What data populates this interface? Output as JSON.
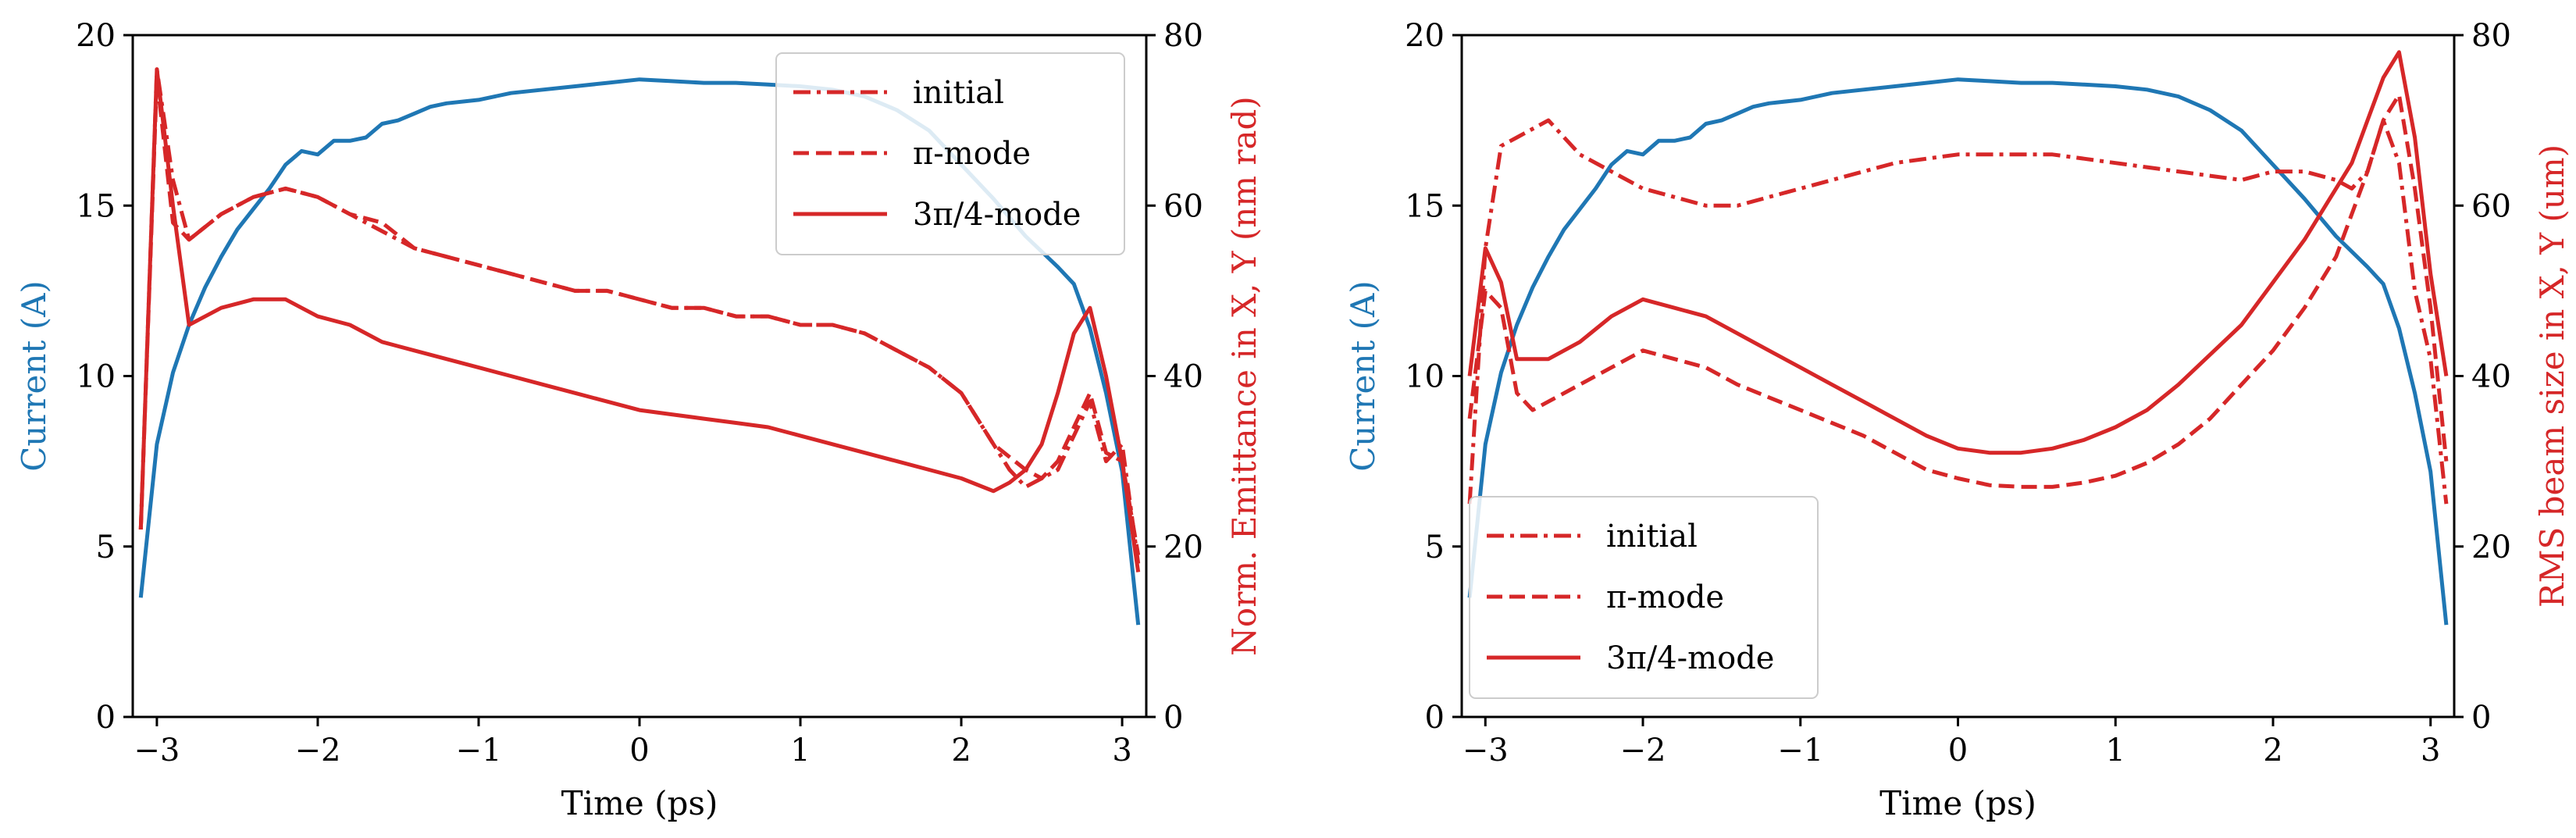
{
  "colors": {
    "current": "#1f77b4",
    "emittance": "#d62728"
  },
  "chart_data": [
    {
      "type": "line",
      "xlabel": "Time (ps)",
      "ylabel_left": "Current (A)",
      "ylabel_right": "Norm. Emittance in X, Y (nm rad)",
      "xlim": [
        -3.15,
        3.15
      ],
      "ylim_left": [
        0,
        20
      ],
      "ylim_right": [
        0,
        80
      ],
      "xticks": [
        -3,
        -2,
        -1,
        0,
        1,
        2,
        3
      ],
      "xtick_labels": [
        "−3",
        "−2",
        "−1",
        "0",
        "1",
        "2",
        "3"
      ],
      "yticks_left": [
        0,
        5,
        10,
        15,
        20
      ],
      "yticks_right": [
        0,
        20,
        40,
        60,
        80
      ],
      "legend_position": "top-right",
      "current": {
        "x": [
          -3.1,
          -3.0,
          -2.9,
          -2.8,
          -2.7,
          -2.6,
          -2.5,
          -2.4,
          -2.3,
          -2.2,
          -2.1,
          -2.0,
          -1.9,
          -1.8,
          -1.7,
          -1.6,
          -1.5,
          -1.4,
          -1.3,
          -1.2,
          -1.0,
          -0.8,
          -0.6,
          -0.4,
          -0.2,
          0.0,
          0.2,
          0.4,
          0.6,
          0.8,
          1.0,
          1.2,
          1.4,
          1.6,
          1.8,
          2.0,
          2.2,
          2.4,
          2.6,
          2.7,
          2.8,
          2.9,
          3.0,
          3.1
        ],
        "y": [
          3.5,
          8.0,
          10.1,
          11.5,
          12.6,
          13.5,
          14.3,
          14.9,
          15.5,
          16.2,
          16.6,
          16.5,
          16.9,
          16.9,
          17.0,
          17.4,
          17.5,
          17.7,
          17.9,
          18.0,
          18.1,
          18.3,
          18.4,
          18.5,
          18.6,
          18.7,
          18.65,
          18.6,
          18.6,
          18.55,
          18.5,
          18.4,
          18.2,
          17.8,
          17.2,
          16.2,
          15.2,
          14.1,
          13.2,
          12.7,
          11.4,
          9.5,
          7.2,
          2.7
        ]
      },
      "series": [
        {
          "name": "initial",
          "style": "dashdot",
          "x": [
            -3.1,
            -3.0,
            -2.9,
            -2.8,
            -2.6,
            -2.4,
            -2.2,
            -2.0,
            -1.8,
            -1.6,
            -1.4,
            -1.2,
            -1.0,
            -0.8,
            -0.6,
            -0.4,
            -0.2,
            0.0,
            0.2,
            0.4,
            0.6,
            0.8,
            1.0,
            1.2,
            1.4,
            1.6,
            1.8,
            2.0,
            2.1,
            2.2,
            2.3,
            2.4,
            2.5,
            2.6,
            2.7,
            2.8,
            2.9,
            3.0,
            3.1
          ],
          "y": [
            22,
            76,
            63,
            56,
            59,
            61,
            62,
            61,
            59,
            57,
            55,
            54,
            53,
            52,
            51,
            50,
            50,
            49,
            48,
            48,
            47,
            47,
            46,
            46,
            45,
            43,
            41,
            38,
            35,
            32,
            29,
            27,
            28,
            29,
            33,
            37,
            30,
            32,
            18
          ]
        },
        {
          "name": "π-mode",
          "style": "dashed",
          "x": [
            -3.1,
            -3.0,
            -2.9,
            -2.8,
            -2.6,
            -2.4,
            -2.2,
            -2.0,
            -1.8,
            -1.6,
            -1.4,
            -1.2,
            -1.0,
            -0.8,
            -0.6,
            -0.4,
            -0.2,
            0.0,
            0.2,
            0.4,
            0.6,
            0.8,
            1.0,
            1.2,
            1.4,
            1.6,
            1.8,
            2.0,
            2.2,
            2.4,
            2.5,
            2.6,
            2.7,
            2.8,
            2.9,
            3.0,
            3.1
          ],
          "y": [
            22,
            75,
            58,
            56,
            59,
            61,
            62,
            61,
            59,
            58,
            55,
            54,
            53,
            52,
            51,
            50,
            50,
            49,
            48,
            48,
            47,
            47,
            46,
            46,
            45,
            43,
            41,
            38,
            32,
            29,
            28,
            30,
            34,
            38,
            31,
            30,
            19
          ]
        },
        {
          "name": "3π/4-mode",
          "style": "solid",
          "x": [
            -3.1,
            -3.0,
            -2.9,
            -2.8,
            -2.6,
            -2.4,
            -2.2,
            -2.0,
            -1.8,
            -1.6,
            -1.4,
            -1.2,
            -1.0,
            -0.8,
            -0.6,
            -0.4,
            -0.2,
            0.0,
            0.2,
            0.4,
            0.6,
            0.8,
            1.0,
            1.2,
            1.4,
            1.6,
            1.8,
            2.0,
            2.2,
            2.3,
            2.4,
            2.5,
            2.6,
            2.7,
            2.8,
            2.9,
            3.0,
            3.1
          ],
          "y": [
            22,
            76,
            60,
            46,
            48,
            49,
            49,
            47,
            46,
            44,
            43,
            42,
            41,
            40,
            39,
            38,
            37,
            36,
            35.5,
            35,
            34.5,
            34,
            33,
            32,
            31,
            30,
            29,
            28,
            26.5,
            27.5,
            29,
            32,
            38,
            45,
            48,
            40,
            30,
            17
          ]
        }
      ]
    },
    {
      "type": "line",
      "xlabel": "Time (ps)",
      "ylabel_left": "Current (A)",
      "ylabel_right": "RMS beam size in X, Y (um)",
      "xlim": [
        -3.15,
        3.15
      ],
      "ylim_left": [
        0,
        20
      ],
      "ylim_right": [
        0,
        80
      ],
      "xticks": [
        -3,
        -2,
        -1,
        0,
        1,
        2,
        3
      ],
      "xtick_labels": [
        "−3",
        "−2",
        "−1",
        "0",
        "1",
        "2",
        "3"
      ],
      "yticks_left": [
        0,
        5,
        10,
        15,
        20
      ],
      "yticks_right": [
        0,
        20,
        40,
        60,
        80
      ],
      "legend_position": "bottom-left",
      "current": {
        "x": [
          -3.1,
          -3.0,
          -2.9,
          -2.8,
          -2.7,
          -2.6,
          -2.5,
          -2.4,
          -2.3,
          -2.2,
          -2.1,
          -2.0,
          -1.9,
          -1.8,
          -1.7,
          -1.6,
          -1.5,
          -1.4,
          -1.3,
          -1.2,
          -1.0,
          -0.8,
          -0.6,
          -0.4,
          -0.2,
          0.0,
          0.2,
          0.4,
          0.6,
          0.8,
          1.0,
          1.2,
          1.4,
          1.6,
          1.8,
          2.0,
          2.2,
          2.4,
          2.6,
          2.7,
          2.8,
          2.9,
          3.0,
          3.1
        ],
        "y": [
          3.5,
          8.0,
          10.1,
          11.5,
          12.6,
          13.5,
          14.3,
          14.9,
          15.5,
          16.2,
          16.6,
          16.5,
          16.9,
          16.9,
          17.0,
          17.4,
          17.5,
          17.7,
          17.9,
          18.0,
          18.1,
          18.3,
          18.4,
          18.5,
          18.6,
          18.7,
          18.65,
          18.6,
          18.6,
          18.55,
          18.5,
          18.4,
          18.2,
          17.8,
          17.2,
          16.2,
          15.2,
          14.1,
          13.2,
          12.7,
          11.4,
          9.5,
          7.2,
          2.7
        ]
      },
      "series": [
        {
          "name": "initial",
          "style": "dashdot",
          "x": [
            -3.1,
            -3.0,
            -2.9,
            -2.8,
            -2.7,
            -2.6,
            -2.4,
            -2.2,
            -2.0,
            -1.8,
            -1.6,
            -1.4,
            -1.2,
            -1.0,
            -0.8,
            -0.6,
            -0.4,
            -0.2,
            0.0,
            0.2,
            0.4,
            0.6,
            0.8,
            1.0,
            1.2,
            1.4,
            1.6,
            1.8,
            2.0,
            2.2,
            2.4,
            2.5,
            2.6,
            2.7,
            2.8,
            2.9,
            3.0,
            3.1
          ],
          "y": [
            25,
            55,
            67,
            68,
            69,
            70,
            66,
            64,
            62,
            61,
            60,
            60,
            61,
            62,
            63,
            64,
            65,
            65.5,
            66,
            66,
            66,
            66,
            65.5,
            65,
            64.5,
            64,
            63.5,
            63,
            64,
            64,
            63,
            62,
            64,
            70,
            65,
            50,
            42,
            25
          ]
        },
        {
          "name": "π-mode",
          "style": "dashed",
          "x": [
            -3.1,
            -3.0,
            -2.9,
            -2.8,
            -2.7,
            -2.6,
            -2.4,
            -2.2,
            -2.0,
            -1.8,
            -1.6,
            -1.4,
            -1.2,
            -1.0,
            -0.8,
            -0.6,
            -0.4,
            -0.2,
            0.0,
            0.2,
            0.4,
            0.6,
            0.8,
            1.0,
            1.2,
            1.4,
            1.6,
            1.8,
            2.0,
            2.2,
            2.4,
            2.6,
            2.7,
            2.8,
            2.9,
            3.0,
            3.1
          ],
          "y": [
            35,
            50,
            48,
            38,
            36,
            37,
            39,
            41,
            43,
            42,
            41,
            39,
            37.5,
            36,
            34.5,
            33,
            31,
            29,
            28,
            27.2,
            27,
            27,
            27.5,
            28.3,
            29.8,
            32,
            35,
            39,
            43,
            48,
            54,
            64,
            70,
            73,
            62,
            48,
            30
          ]
        },
        {
          "name": "3π/4-mode",
          "style": "solid",
          "x": [
            -3.1,
            -3.0,
            -2.9,
            -2.8,
            -2.7,
            -2.6,
            -2.4,
            -2.2,
            -2.0,
            -1.8,
            -1.6,
            -1.4,
            -1.2,
            -1.0,
            -0.8,
            -0.6,
            -0.4,
            -0.2,
            0.0,
            0.2,
            0.4,
            0.6,
            0.8,
            1.0,
            1.2,
            1.4,
            1.6,
            1.8,
            2.0,
            2.2,
            2.4,
            2.5,
            2.6,
            2.7,
            2.8,
            2.9,
            3.0,
            3.1
          ],
          "y": [
            40,
            55,
            51,
            42,
            42,
            42,
            44,
            47,
            49,
            48,
            47,
            45,
            43,
            41,
            39,
            37,
            35,
            33,
            31.5,
            31,
            31,
            31.5,
            32.5,
            34,
            36,
            39,
            42.5,
            46,
            51,
            56,
            62,
            65,
            70,
            75,
            78,
            68,
            52,
            40
          ]
        }
      ]
    }
  ]
}
